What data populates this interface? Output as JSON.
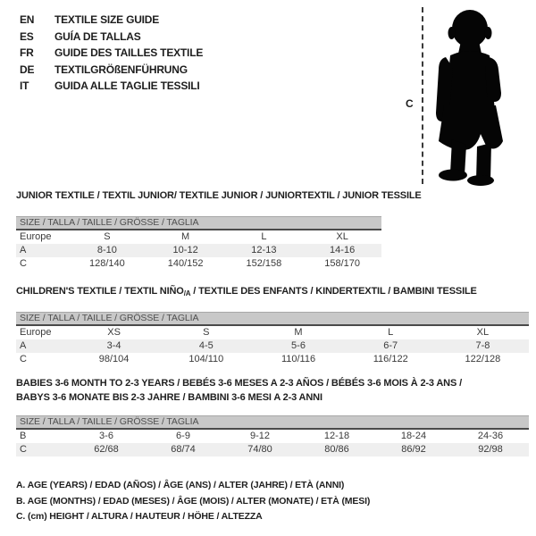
{
  "colors": {
    "background": "#ffffff",
    "header_bar_bg": "#c8c8c8",
    "header_bar_border": "#4a4a4a",
    "stripe_row_bg": "#efefef",
    "title_text": "#1f1f1f",
    "body_text": "#3a3a3a",
    "silhouette": "#050505"
  },
  "languages": {
    "items": [
      {
        "code": "EN",
        "title": "TEXTILE SIZE GUIDE"
      },
      {
        "code": "ES",
        "title": "GUÍA DE TALLAS"
      },
      {
        "code": "FR",
        "title": "GUIDE DES TAILLES TEXTILE"
      },
      {
        "code": "DE",
        "title": "TEXTILGRÖßENFÜHRUNG"
      },
      {
        "code": "IT",
        "title": "GUIDA ALLE TAGLIE TESSILI"
      }
    ]
  },
  "figure": {
    "height_label": "C",
    "silhouette_name": "standing-baby-silhouette"
  },
  "sections": [
    {
      "id": "junior",
      "title_lines": [
        [
          {
            "text": "JUNIOR TEXTILE / TEXTIL JUNIOR/ TEXTILE JUNIOR / JUNIORTEXTIL / JUNIOR TESSILE",
            "sub": false
          }
        ]
      ],
      "size_header": "SIZE / TALLA / TAILLE / GRÖSSE / TAGLIA",
      "rows": [
        {
          "label": "Europe",
          "values": [
            "S",
            "M",
            "L",
            "XL"
          ],
          "striped": false
        },
        {
          "label": "A",
          "values": [
            "8-10",
            "10-12",
            "12-13",
            "14-16"
          ],
          "striped": true
        },
        {
          "label": "C",
          "values": [
            "128/140",
            "140/152",
            "152/158",
            "158/170"
          ],
          "striped": false
        }
      ]
    },
    {
      "id": "children",
      "title_lines": [
        [
          {
            "text": "CHILDREN'S TEXTILE / TEXTIL NIÑO",
            "sub": false
          },
          {
            "text": "/A",
            "sub": true
          },
          {
            "text": " / TEXTILE DES ENFANTS / KINDERTEXTIL / BAMBINI TESSILE",
            "sub": false
          }
        ]
      ],
      "size_header": "SIZE / TALLA / TAILLE / GRÖSSE / TAGLIA",
      "rows": [
        {
          "label": "Europe",
          "values": [
            "XS",
            "S",
            "M",
            "L",
            "XL"
          ],
          "striped": false
        },
        {
          "label": "A",
          "values": [
            "3-4",
            "4-5",
            "5-6",
            "6-7",
            "7-8"
          ],
          "striped": true
        },
        {
          "label": "C",
          "values": [
            "98/104",
            "104/110",
            "110/116",
            "116/122",
            "122/128"
          ],
          "striped": false
        }
      ]
    },
    {
      "id": "babies",
      "title_lines": [
        [
          {
            "text": "BABIES 3-6 MONTH TO 2-3 YEARS / BEBÉS 3-6 MESES A 2-3 AÑOS / BÉBÉS 3-6 MOIS À 2-3 ANS /",
            "sub": false
          }
        ],
        [
          {
            "text": "BABYS 3-6 MONATE BIS 2-3 JAHRE / BAMBINI 3-6 MESI A 2-3 ANNI",
            "sub": false
          }
        ]
      ],
      "size_header": "SIZE / TALLA / TAILLE / GRÖSSE / TAGLIA",
      "rows": [
        {
          "label": "B",
          "values": [
            "3-6",
            "6-9",
            "9-12",
            "12-18",
            "18-24",
            "24-36"
          ],
          "striped": false
        },
        {
          "label": "C",
          "values": [
            "62/68",
            "68/74",
            "74/80",
            "80/86",
            "86/92",
            "92/98"
          ],
          "striped": true
        }
      ]
    }
  ],
  "footnotes": [
    "A. AGE (YEARS) / EDAD (AÑOS) / ÂGE (ANS) / ALTER (JAHRE) / ETÀ (ANNI)",
    "B. AGE (MONTHS) / EDAD (MESES) / ÂGE (MOIS) / ALTER (MONATE) / ETÀ (MESI)",
    "C. (cm) HEIGHT / ALTURA / HAUTEUR / HÖHE / ALTEZZA"
  ]
}
